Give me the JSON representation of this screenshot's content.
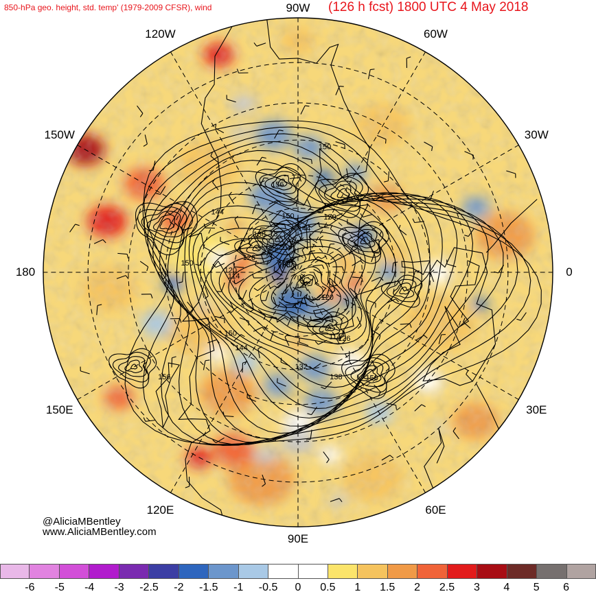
{
  "title_left": "850-hPa geo. height, std. temp' (1979-2009 CFSR), wind",
  "title_right": "(126 h fcst) 1800 UTC 4 May 2018",
  "longitude_labels": [
    {
      "text": "90W",
      "angle": 0
    },
    {
      "text": "60W",
      "angle": 30
    },
    {
      "text": "30W",
      "angle": 60
    },
    {
      "text": "0",
      "angle": 90
    },
    {
      "text": "30E",
      "angle": 120
    },
    {
      "text": "60E",
      "angle": 150
    },
    {
      "text": "90E",
      "angle": 180
    },
    {
      "text": "120E",
      "angle": 210
    },
    {
      "text": "150E",
      "angle": 240
    },
    {
      "text": "180",
      "angle": 270
    },
    {
      "text": "150W",
      "angle": 300
    },
    {
      "text": "120W",
      "angle": 330
    }
  ],
  "contour_labels": [
    {
      "text": "150",
      "lat": 51,
      "lon": -78
    },
    {
      "text": "156",
      "lat": 62,
      "lon": -103
    },
    {
      "text": "150",
      "lat": 70,
      "lon": -60
    },
    {
      "text": "150",
      "lat": 72,
      "lon": -100
    },
    {
      "text": "144",
      "lat": 76,
      "lon": -82
    },
    {
      "text": "138",
      "lat": 73,
      "lon": -135
    },
    {
      "text": "132",
      "lat": 76,
      "lon": -120
    },
    {
      "text": "144",
      "lat": 59,
      "lon": -143
    },
    {
      "text": "126",
      "lat": 74,
      "lon": -163
    },
    {
      "text": "150",
      "lat": 56,
      "lon": -175
    },
    {
      "text": "108",
      "lat": 85,
      "lon": -150
    },
    {
      "text": "114",
      "lat": 70,
      "lon": 177
    },
    {
      "text": "120",
      "lat": 69,
      "lon": -178
    },
    {
      "text": "120",
      "lat": 78,
      "lon": 40
    },
    {
      "text": "114",
      "lat": 67,
      "lon": 60
    },
    {
      "text": "126",
      "lat": 65,
      "lon": 55
    },
    {
      "text": "132",
      "lat": 61,
      "lon": 88
    },
    {
      "text": "138",
      "lat": 56,
      "lon": 70
    },
    {
      "text": "150",
      "lat": 51,
      "lon": 55
    },
    {
      "text": "144",
      "lat": 61,
      "lon": 127
    },
    {
      "text": "150",
      "lat": 62,
      "lon": 138
    },
    {
      "text": "156",
      "lat": 40,
      "lon": 142
    }
  ],
  "colorbar": {
    "colors": [
      "#e9b8e8",
      "#e183e0",
      "#d24fd8",
      "#b11ccd",
      "#7a2bb0",
      "#3c3ea4",
      "#2e66be",
      "#6c96cc",
      "#a9c9e6",
      "#ffffff",
      "#ffffff",
      "#fbe46b",
      "#f5c35e",
      "#f09a47",
      "#f06338",
      "#e21b1b",
      "#a80d14",
      "#6d2b27",
      "#76706f",
      "#b0a3a1"
    ],
    "tick_labels": [
      "-6",
      "-5",
      "-4",
      "-3",
      "-2.5",
      "-2",
      "-1.5",
      "-1",
      "-0.5",
      "0",
      "0.5",
      "1",
      "1.5",
      "2",
      "2.5",
      "3",
      "4",
      "5",
      "6"
    ]
  },
  "credit_name": "@AliciaMBentley",
  "credit_url": "www.AliciaMBentley.com",
  "colors": {
    "title": "#e8141b",
    "land_missing": "#c8c8c8",
    "contour": "#000000"
  }
}
